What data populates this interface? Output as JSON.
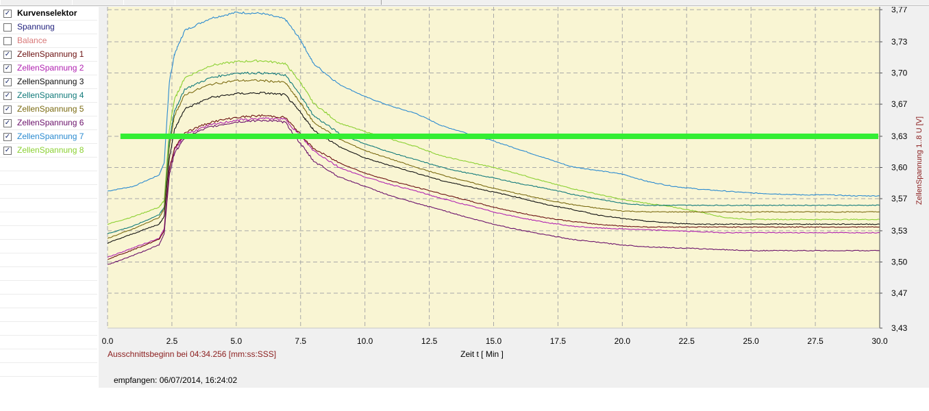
{
  "selector": {
    "items": [
      {
        "label": "Kurvenselektor",
        "checked": true,
        "color": "#000000",
        "bold": true
      },
      {
        "label": "Spannung",
        "checked": false,
        "color": "#1c1c7a"
      },
      {
        "label": "Balance",
        "checked": false,
        "color": "#d87878"
      },
      {
        "label": "ZellenSpannung 1",
        "checked": true,
        "color": "#6b1010"
      },
      {
        "label": "ZellenSpannung 2",
        "checked": true,
        "color": "#b020b0"
      },
      {
        "label": "ZellenSpannung 3",
        "checked": true,
        "color": "#101010"
      },
      {
        "label": "ZellenSpannung 4",
        "checked": true,
        "color": "#107a7a"
      },
      {
        "label": "ZellenSpannung 5",
        "checked": true,
        "color": "#7a6a10"
      },
      {
        "label": "ZellenSpannung 6",
        "checked": true,
        "color": "#6a106a"
      },
      {
        "label": "ZellenSpannung 7",
        "checked": true,
        "color": "#2a8ad0"
      },
      {
        "label": "ZellenSpannung 8",
        "checked": true,
        "color": "#8ad030"
      }
    ]
  },
  "status": {
    "section_start": "Ausschnittsbeginn bei 04:34.256 [mm:ss:SSS]",
    "received": "empfangen: 06/07/2014, 16:24:02"
  },
  "chart_data": {
    "type": "line",
    "xlabel": "Zeit  t  [ Min ]",
    "ylabel": "ZellenSpannung 1..8  U  [V]",
    "xlim": [
      0,
      30
    ],
    "ylim": [
      3.43,
      3.77
    ],
    "x_ticks": [
      "0.0",
      "2.5",
      "5.0",
      "7.5",
      "10.0",
      "12.5",
      "15.0",
      "17.5",
      "20.0",
      "22.5",
      "25.0",
      "27.5",
      "30.0"
    ],
    "y_ticks": [
      "3,43",
      "3,47",
      "3,50",
      "3,53",
      "3,57",
      "3,60",
      "3,63",
      "3,67",
      "3,70",
      "3,73",
      "3,77"
    ],
    "y_tick_values": [
      3.43,
      3.467,
      3.5,
      3.533,
      3.567,
      3.6,
      3.633,
      3.667,
      3.7,
      3.733,
      3.767
    ],
    "grid": true,
    "plot_background": "#f9f5d3",
    "reference_line": {
      "y": 3.633,
      "x_range": [
        0.5,
        30
      ],
      "color": "#33ee33"
    },
    "series": [
      {
        "name": "ZellenSpannung 7",
        "color": "#2a8ad0",
        "x": [
          0,
          1,
          2,
          2.2,
          2.4,
          2.6,
          3,
          4,
          5,
          6,
          6.9,
          7.5,
          8,
          9,
          10,
          11,
          12,
          13,
          14,
          15,
          16,
          17,
          18,
          19,
          20,
          21,
          22,
          23,
          24,
          25,
          26,
          27,
          28,
          29,
          30
        ],
        "y": [
          3.575,
          3.58,
          3.592,
          3.605,
          3.69,
          3.72,
          3.745,
          3.758,
          3.764,
          3.763,
          3.757,
          3.735,
          3.71,
          3.688,
          3.675,
          3.665,
          3.657,
          3.644,
          3.636,
          3.628,
          3.619,
          3.61,
          3.601,
          3.597,
          3.593,
          3.585,
          3.58,
          3.577,
          3.575,
          3.573,
          3.572,
          3.571,
          3.571,
          3.57,
          3.57
        ]
      },
      {
        "name": "ZellenSpannung 8",
        "color": "#8ad030",
        "x": [
          0,
          1,
          2,
          2.2,
          2.4,
          2.6,
          3,
          4,
          5,
          6,
          6.9,
          7.5,
          8,
          9,
          10,
          11,
          12,
          13,
          14,
          15,
          16,
          17,
          18,
          19,
          20,
          21,
          22,
          23,
          24,
          25,
          26,
          27,
          28,
          29,
          30
        ],
        "y": [
          3.54,
          3.548,
          3.558,
          3.565,
          3.64,
          3.672,
          3.695,
          3.708,
          3.712,
          3.713,
          3.71,
          3.69,
          3.668,
          3.647,
          3.638,
          3.63,
          3.622,
          3.612,
          3.606,
          3.6,
          3.593,
          3.585,
          3.578,
          3.572,
          3.566,
          3.562,
          3.558,
          3.553,
          3.547,
          3.545,
          3.545,
          3.545,
          3.545,
          3.545,
          3.545
        ]
      },
      {
        "name": "ZellenSpannung 4",
        "color": "#107a7a",
        "x": [
          0,
          1,
          2,
          2.2,
          2.4,
          2.6,
          3,
          4,
          5,
          6,
          6.9,
          7.5,
          8,
          9,
          10,
          11,
          12,
          13,
          14,
          15,
          16,
          17,
          18,
          19,
          20,
          21,
          22,
          23,
          24,
          25,
          26,
          27,
          28,
          29,
          30
        ],
        "y": [
          3.53,
          3.538,
          3.55,
          3.558,
          3.628,
          3.66,
          3.683,
          3.695,
          3.7,
          3.7,
          3.698,
          3.676,
          3.655,
          3.636,
          3.625,
          3.616,
          3.608,
          3.6,
          3.594,
          3.589,
          3.583,
          3.578,
          3.572,
          3.567,
          3.562,
          3.56,
          3.56,
          3.56,
          3.56,
          3.56,
          3.56,
          3.56,
          3.56,
          3.56,
          3.56
        ]
      },
      {
        "name": "ZellenSpannung 5",
        "color": "#7a6a10",
        "x": [
          0,
          1,
          2,
          2.2,
          2.4,
          2.6,
          3,
          4,
          5,
          6,
          6.9,
          7.5,
          8,
          9,
          10,
          11,
          12,
          13,
          14,
          15,
          16,
          17,
          18,
          19,
          20,
          21,
          22,
          23,
          24,
          25,
          26,
          27,
          28,
          29,
          30
        ],
        "y": [
          3.525,
          3.535,
          3.547,
          3.556,
          3.622,
          3.655,
          3.677,
          3.688,
          3.692,
          3.692,
          3.69,
          3.668,
          3.648,
          3.63,
          3.618,
          3.609,
          3.6,
          3.592,
          3.585,
          3.578,
          3.572,
          3.566,
          3.561,
          3.557,
          3.554,
          3.553,
          3.553,
          3.553,
          3.553,
          3.553,
          3.553,
          3.553,
          3.553,
          3.553,
          3.553
        ]
      },
      {
        "name": "ZellenSpannung 3",
        "color": "#101010",
        "x": [
          0,
          1,
          2,
          2.2,
          2.4,
          2.6,
          3,
          4,
          5,
          6,
          6.9,
          7.5,
          8,
          9,
          10,
          11,
          12,
          13,
          14,
          15,
          16,
          17,
          18,
          19,
          20,
          21,
          22,
          23,
          24,
          25,
          26,
          27,
          28,
          29,
          30
        ],
        "y": [
          3.52,
          3.53,
          3.54,
          3.548,
          3.61,
          3.64,
          3.662,
          3.674,
          3.678,
          3.679,
          3.677,
          3.658,
          3.64,
          3.622,
          3.61,
          3.602,
          3.594,
          3.586,
          3.58,
          3.574,
          3.568,
          3.561,
          3.556,
          3.55,
          3.546,
          3.543,
          3.541,
          3.54,
          3.54,
          3.54,
          3.54,
          3.54,
          3.54,
          3.54,
          3.54
        ]
      },
      {
        "name": "ZellenSpannung 2",
        "color": "#b020b0",
        "x": [
          0,
          1,
          2,
          2.2,
          2.4,
          2.6,
          3,
          4,
          5,
          6,
          6.9,
          7.5,
          8,
          9,
          10,
          11,
          12,
          13,
          14,
          15,
          16,
          17,
          18,
          19,
          20,
          21,
          22,
          23,
          24,
          25,
          26,
          27,
          28,
          29,
          30
        ],
        "y": [
          3.505,
          3.515,
          3.525,
          3.535,
          3.6,
          3.618,
          3.635,
          3.645,
          3.65,
          3.652,
          3.651,
          3.633,
          3.618,
          3.6,
          3.59,
          3.582,
          3.575,
          3.567,
          3.56,
          3.553,
          3.547,
          3.542,
          3.538,
          3.536,
          3.535,
          3.534,
          3.533,
          3.532,
          3.531,
          3.531,
          3.531,
          3.531,
          3.531,
          3.531,
          3.531
        ]
      },
      {
        "name": "ZellenSpannung 1",
        "color": "#6b1010",
        "x": [
          0,
          1,
          2,
          2.2,
          2.4,
          2.6,
          3,
          4,
          5,
          6,
          6.9,
          7.5,
          8,
          9,
          10,
          11,
          12,
          13,
          14,
          15,
          16,
          17,
          18,
          19,
          20,
          21,
          22,
          23,
          24,
          25,
          26,
          27,
          28,
          29,
          30
        ],
        "y": [
          3.503,
          3.513,
          3.524,
          3.533,
          3.597,
          3.62,
          3.637,
          3.648,
          3.653,
          3.655,
          3.653,
          3.635,
          3.62,
          3.605,
          3.594,
          3.586,
          3.579,
          3.572,
          3.565,
          3.558,
          3.552,
          3.547,
          3.543,
          3.54,
          3.538,
          3.537,
          3.537,
          3.537,
          3.537,
          3.537,
          3.537,
          3.537,
          3.537,
          3.537,
          3.537
        ]
      },
      {
        "name": "ZellenSpannung 6",
        "color": "#6a106a",
        "x": [
          0,
          1,
          2,
          2.2,
          2.4,
          2.6,
          3,
          4,
          5,
          6,
          6.9,
          7.5,
          8,
          9,
          10,
          11,
          12,
          13,
          14,
          15,
          16,
          17,
          18,
          19,
          20,
          21,
          22,
          23,
          24,
          25,
          26,
          27,
          28,
          29,
          30
        ],
        "y": [
          3.497,
          3.507,
          3.518,
          3.53,
          3.592,
          3.615,
          3.632,
          3.643,
          3.648,
          3.65,
          3.648,
          3.625,
          3.607,
          3.59,
          3.58,
          3.57,
          3.562,
          3.555,
          3.547,
          3.54,
          3.534,
          3.529,
          3.524,
          3.521,
          3.518,
          3.516,
          3.515,
          3.514,
          3.513,
          3.512,
          3.512,
          3.512,
          3.512,
          3.512,
          3.512
        ]
      }
    ]
  }
}
